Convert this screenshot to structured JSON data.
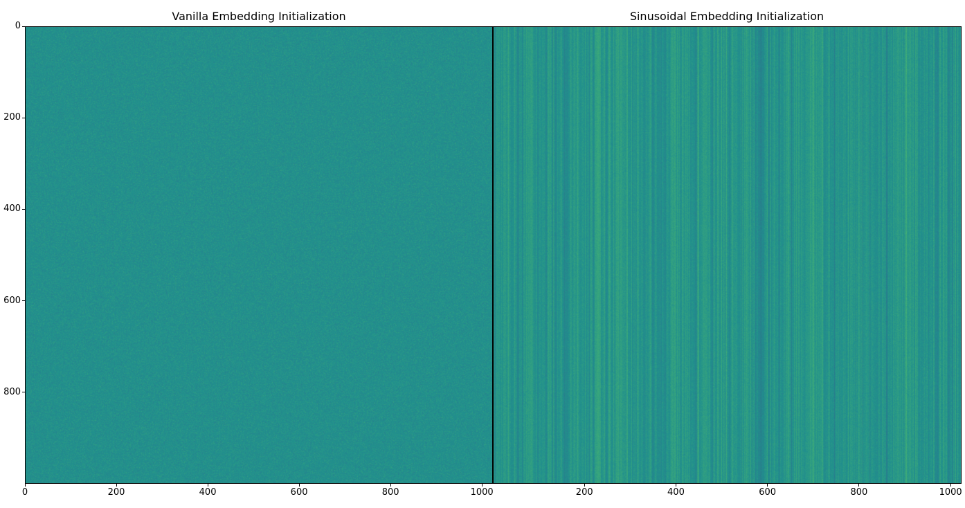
{
  "chart_data": [
    {
      "type": "heatmap",
      "title": "Vanilla Embedding Initialization",
      "xlim": [
        0,
        1024
      ],
      "ylim": [
        1000,
        0
      ],
      "x_ticks": [
        "0",
        "200",
        "400",
        "600",
        "800",
        "1000"
      ],
      "y_ticks": [
        "0",
        "200",
        "400",
        "600",
        "800"
      ],
      "colormap": "viridis",
      "pattern": "uniform random noise centered near colormap midpoint"
    },
    {
      "type": "heatmap",
      "title": "Sinusoidal Embedding Initialization",
      "xlim": [
        0,
        1024
      ],
      "ylim": [
        1000,
        0
      ],
      "x_ticks": [
        "200",
        "400",
        "600",
        "800",
        "1000"
      ],
      "y_ticks": [],
      "colormap": "viridis",
      "pattern": "vertical stripes varying along embedding dimension"
    }
  ],
  "colors": {
    "viridis_mid": "#21908d",
    "viridis_dark": "#3b528b",
    "viridis_light": "#5ec962"
  }
}
